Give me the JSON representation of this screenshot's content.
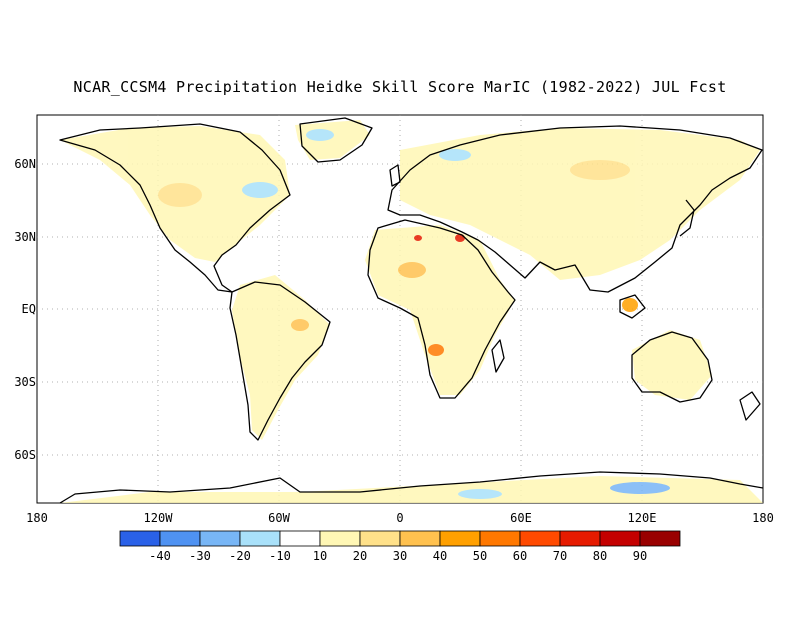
{
  "title": "NCAR_CCSM4 Precipitation Heidke Skill Score MarIC (1982-2022) JUL Fcst",
  "map": {
    "lat_labels": [
      "60N",
      "30N",
      "EQ",
      "30S",
      "60S"
    ],
    "lon_labels": [
      "180",
      "120W",
      "60W",
      "0",
      "60E",
      "120E",
      "180"
    ],
    "lat_values": [
      60,
      30,
      0,
      -30,
      -60
    ],
    "lon_values": [
      -180,
      -120,
      -60,
      0,
      60,
      120,
      180
    ],
    "extent": {
      "lon": [
        -180,
        180
      ],
      "lat": [
        -80,
        80
      ]
    },
    "grid": "dotted",
    "projection": "equirectangular"
  },
  "colorbar": {
    "labels": [
      "-40",
      "-30",
      "-20",
      "-10",
      "10",
      "20",
      "30",
      "40",
      "50",
      "60",
      "70",
      "80",
      "90"
    ],
    "colors": [
      "#2a61e8",
      "#4f92f2",
      "#78b6f6",
      "#a9e1fa",
      "#ffffff",
      "#fff7b5",
      "#ffe18a",
      "#ffc14f",
      "#ffa000",
      "#ff7800",
      "#ff4a00",
      "#e61b00",
      "#c40000",
      "#990000"
    ]
  }
}
